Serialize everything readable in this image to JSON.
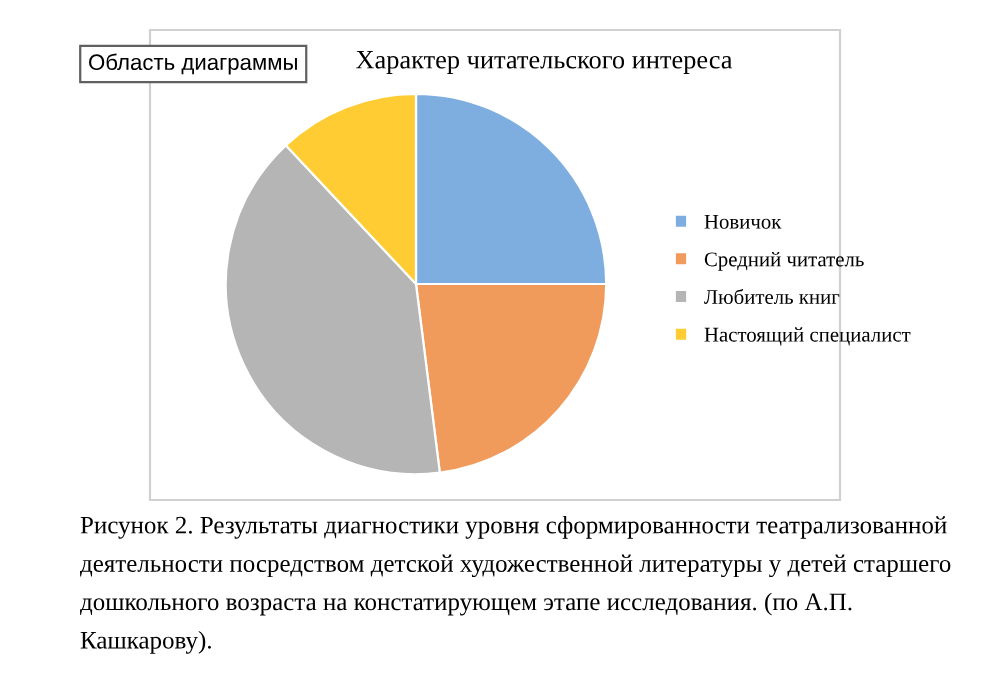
{
  "chart_data": {
    "type": "pie",
    "title": "Характер читательского интереса",
    "categories": [
      "Новичок",
      "Средний читатель",
      "Любитель книг",
      "Настоящий специалист"
    ],
    "values": [
      25,
      23,
      40,
      12
    ],
    "colors": [
      "#7eaee0",
      "#f09a5c",
      "#b5b5b5",
      "#ffcc33"
    ],
    "legend": "right",
    "annotations": [
      "Область диаграммы",
      "Рисунок 2. Результаты диагностики уровня сформированности театрализованной деятельности посредством детской художественной литературы у детей старшего дошкольного возраста на констатирующем этапе исследования. (по А.П. Кашкарову)."
    ]
  }
}
